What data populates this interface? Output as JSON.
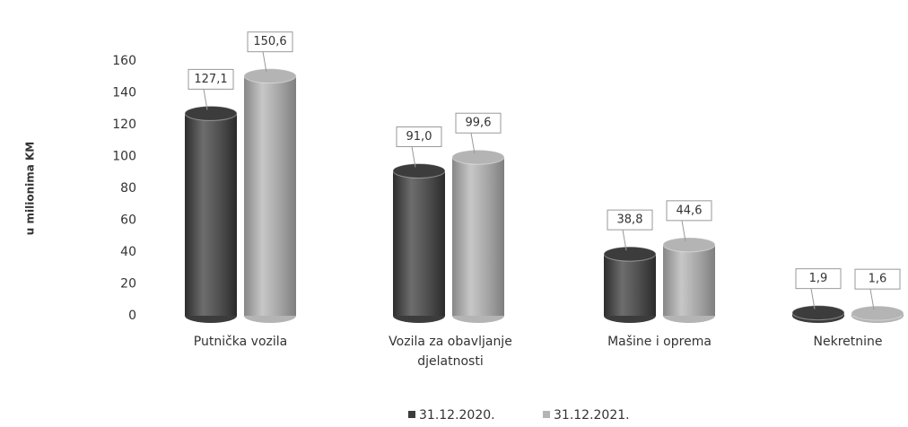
{
  "chart_data": {
    "type": "bar",
    "y_axis_label": "u milionima KM",
    "categories": [
      "Putnička vozila",
      "Vozila za obavljanje djelatnosti",
      "Mašine i oprema",
      "Nekretnine"
    ],
    "series": [
      {
        "name": "31.12.2020.",
        "color": "#3c3c3c",
        "values": [
          127.1,
          91.0,
          38.8,
          1.9
        ],
        "value_labels": [
          "127,1",
          "91,0",
          "38,8",
          "1,9"
        ]
      },
      {
        "name": "31.12.2021.",
        "color": "#b4b4b4",
        "values": [
          150.6,
          99.6,
          44.6,
          1.6
        ],
        "value_labels": [
          "150,6",
          "99,6",
          "44,6",
          "1,6"
        ]
      }
    ],
    "ylim": [
      0,
      160
    ],
    "yticks": [
      0,
      20,
      40,
      60,
      80,
      100,
      120,
      140,
      160
    ],
    "grid": false,
    "legend": "bottom"
  }
}
